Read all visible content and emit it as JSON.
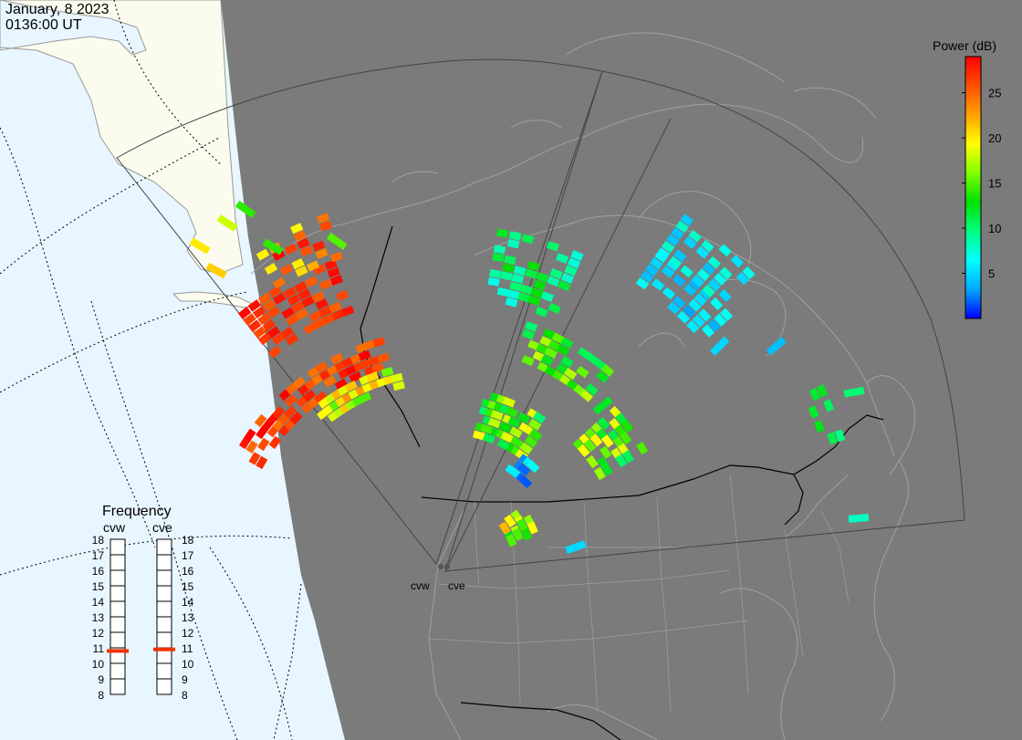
{
  "header": {
    "date": "January, 8 2023",
    "time": "0136:00 UT"
  },
  "colorbar": {
    "title": "Power (dB)",
    "ticks": [
      25,
      20,
      15,
      10,
      5
    ],
    "min": 0,
    "max": 29,
    "stops": [
      "#0000ff",
      "#00aaff",
      "#00ffff",
      "#00ff80",
      "#00e000",
      "#80ff00",
      "#ffff00",
      "#ffa000",
      "#ff5000",
      "#ff0000"
    ]
  },
  "frequency": {
    "title": "Frequency",
    "scale": [
      "18",
      "17",
      "16",
      "15",
      "14",
      "13",
      "12",
      "11",
      "10",
      "9",
      "8"
    ],
    "radars": [
      {
        "name": "cvw",
        "value": 10.8
      },
      {
        "name": "cve",
        "value": 10.9
      }
    ],
    "marker_color": "#ee3300"
  },
  "radars": [
    {
      "name": "cvw"
    },
    {
      "name": "cve"
    }
  ],
  "colors": {
    "ocean": "#e8f6ff",
    "daylight_land": "#fbfbee",
    "night": "#7b7b7b",
    "night_lines": "#a0a0a0",
    "fov_lines": "#444444"
  }
}
